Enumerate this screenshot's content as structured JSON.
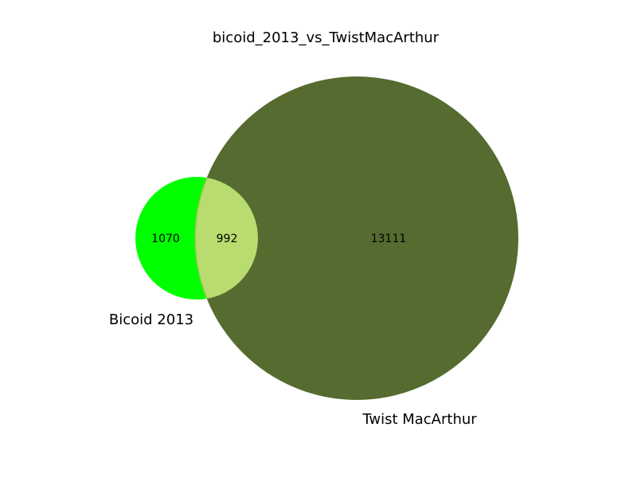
{
  "title": "bicoid_2013_vs_TwistMacArthur",
  "sets": [
    {
      "label": "Bicoid 2013",
      "color": "#00ff00"
    },
    {
      "label": "Twist MacArthur",
      "color": "#556b2f"
    }
  ],
  "regions": {
    "only_a": "1070",
    "overlap": "992",
    "only_b": "13111"
  },
  "overlap_color": "#b8dc70"
}
